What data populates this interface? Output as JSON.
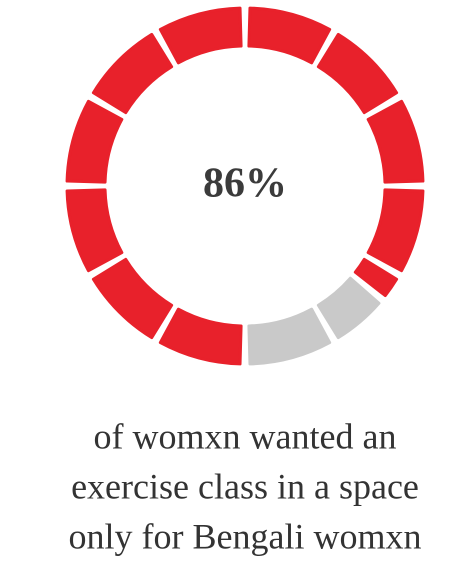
{
  "chart_data": {
    "type": "donut",
    "values": [
      86
    ],
    "value_labels": [
      "86%"
    ],
    "ylim": [
      0,
      100
    ],
    "color": "#e8212b",
    "rest_color": "#c9c9c9",
    "caption": [
      "of womxn wanted an",
      "exercise class in a space",
      "only for Bengali womxn"
    ]
  }
}
